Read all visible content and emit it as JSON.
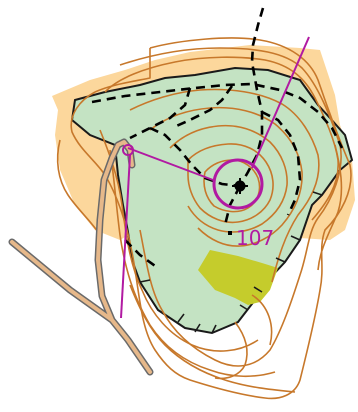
{
  "map": {
    "control_number": "107",
    "colors": {
      "background": "#ffffff",
      "open_land": "#fcd79c",
      "forest": "#c4e3c3",
      "rough_green": "#c5cc2c",
      "contour": "#c7782b",
      "course": "#b11aa2",
      "trail": "#000000",
      "road_fill": "#e6b88a",
      "road_edge": "#6a6a6a"
    }
  }
}
